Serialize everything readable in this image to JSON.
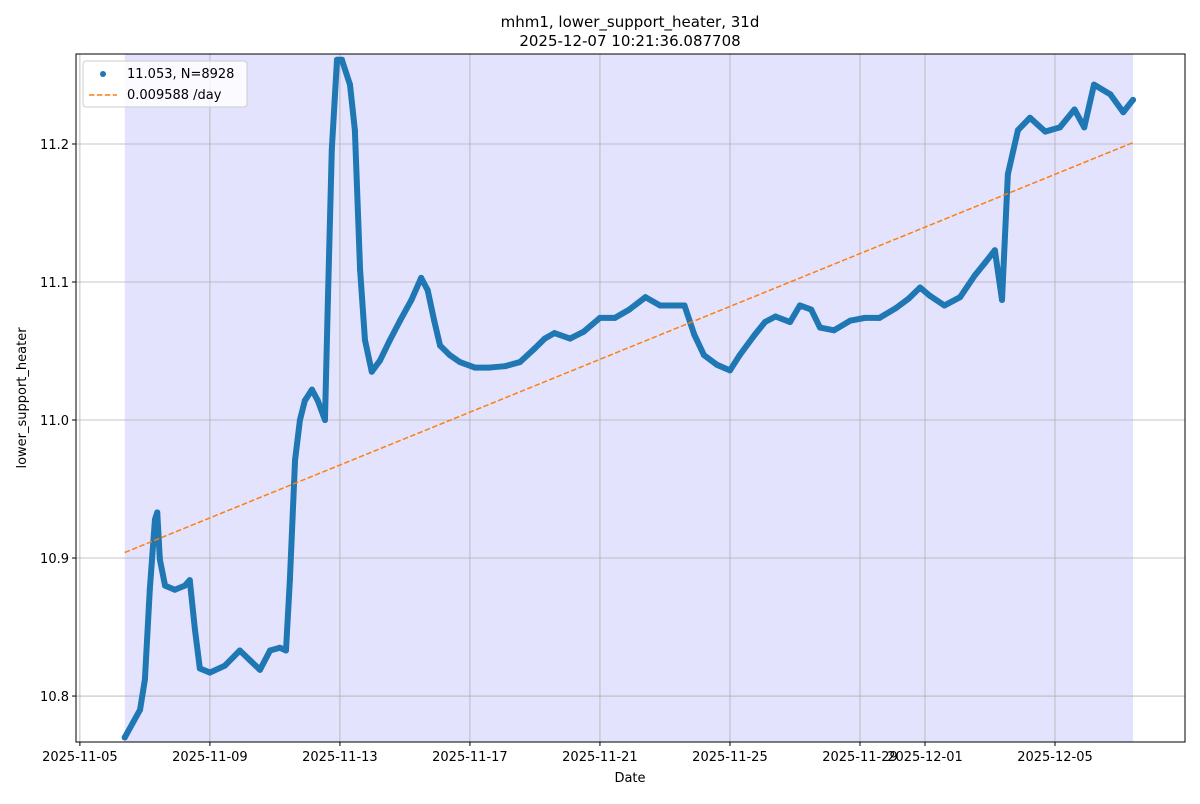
{
  "chart_data": {
    "type": "scatter",
    "title": "mhm1, lower_support_heater, 31d",
    "subtitle": "2025-12-07 10:21:36.087708",
    "x_label": "Date",
    "y_label": "lower_support_heater",
    "xlim": [
      -0.12,
      34.0
    ],
    "ylim": [
      10.7667,
      11.2652
    ],
    "xticks": [
      {
        "value": 0,
        "label": "2025-11-05"
      },
      {
        "value": 4,
        "label": "2025-11-09"
      },
      {
        "value": 8,
        "label": "2025-11-13"
      },
      {
        "value": 12,
        "label": "2025-11-17"
      },
      {
        "value": 16,
        "label": "2025-11-21"
      },
      {
        "value": 20,
        "label": "2025-11-25"
      },
      {
        "value": 24,
        "label": "2025-11-29"
      },
      {
        "value": 26,
        "label": "2025-12-01"
      },
      {
        "value": 30,
        "label": "2025-12-05"
      }
    ],
    "yticks": [
      10.8,
      10.9,
      {
        "value": 11,
        "label": "11.0"
      },
      11.1,
      11.2
    ],
    "grid": true,
    "legend": "upper left",
    "span": [
      1.38,
      32.4
    ],
    "span_color": "#e3e3fd",
    "series": [
      {
        "name": "11.053, N=8928",
        "kind": "scatter",
        "color": "#1f77b4",
        "x": [
          1.38,
          1.85,
          2.0,
          2.15,
          2.31,
          2.38,
          2.46,
          2.62,
          2.92,
          3.23,
          3.38,
          3.54,
          3.69,
          4.0,
          4.46,
          4.92,
          5.23,
          5.54,
          5.85,
          6.15,
          6.34,
          6.46,
          6.62,
          6.77,
          6.92,
          7.14,
          7.32,
          7.54,
          7.63,
          7.75,
          7.91,
          8.06,
          8.31,
          8.46,
          8.62,
          8.77,
          8.98,
          9.23,
          9.54,
          9.85,
          10.2,
          10.5,
          10.7,
          10.9,
          11.08,
          11.38,
          11.69,
          12.15,
          12.6,
          13.08,
          13.54,
          14.0,
          14.3,
          14.6,
          15.08,
          15.5,
          16.0,
          16.46,
          16.9,
          17.4,
          17.85,
          18.3,
          18.6,
          18.9,
          19.2,
          19.6,
          20.0,
          20.3,
          20.77,
          21.08,
          21.4,
          21.85,
          22.15,
          22.5,
          22.77,
          23.2,
          23.7,
          24.15,
          24.6,
          25.1,
          25.5,
          25.85,
          26.15,
          26.6,
          27.08,
          27.54,
          27.85,
          28.15,
          28.37,
          28.55,
          28.86,
          29.23,
          29.7,
          30.15,
          30.6,
          30.9,
          31.2,
          31.7,
          32.1,
          32.4
        ],
        "values": [
          10.77,
          10.79,
          10.812,
          10.877,
          10.928,
          10.933,
          10.899,
          10.88,
          10.877,
          10.88,
          10.884,
          10.848,
          10.82,
          10.817,
          10.822,
          10.833,
          10.826,
          10.819,
          10.833,
          10.835,
          10.833,
          10.884,
          10.971,
          11.0,
          11.014,
          11.022,
          11.014,
          11.0,
          11.087,
          11.196,
          11.261,
          11.261,
          11.243,
          11.21,
          11.109,
          11.058,
          11.035,
          11.043,
          11.058,
          11.072,
          11.087,
          11.103,
          11.094,
          11.072,
          11.054,
          11.047,
          11.042,
          11.038,
          11.038,
          11.039,
          11.042,
          11.052,
          11.059,
          11.063,
          11.059,
          11.064,
          11.074,
          11.074,
          11.08,
          11.089,
          11.083,
          11.083,
          11.083,
          11.062,
          11.047,
          11.04,
          11.036,
          11.047,
          11.062,
          11.071,
          11.075,
          11.071,
          11.083,
          11.08,
          11.067,
          11.065,
          11.072,
          11.074,
          11.074,
          11.081,
          11.088,
          11.096,
          11.09,
          11.083,
          11.089,
          11.105,
          11.114,
          11.123,
          11.087,
          11.178,
          11.21,
          11.219,
          11.209,
          11.212,
          11.225,
          11.212,
          11.243,
          11.236,
          11.223,
          11.232
        ]
      },
      {
        "name": "0.009588 /day",
        "kind": "line",
        "dashed": true,
        "color": "#ff7f0e",
        "x": [
          1.38,
          32.4
        ],
        "values": [
          10.904,
          11.201
        ]
      }
    ]
  }
}
